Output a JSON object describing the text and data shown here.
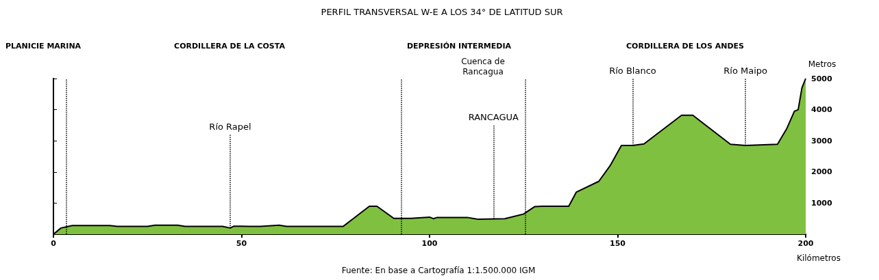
{
  "chart_data": {
    "type": "area",
    "title": "PERFIL TRANSVERSAL W-E A LOS 34° DE LATITUD SUR",
    "xlabel": "Kilómetros",
    "ylabel": "Metros",
    "x": [
      0,
      2,
      5,
      15,
      17,
      25,
      27,
      33,
      35,
      45,
      47,
      48,
      50,
      52,
      55,
      60,
      62,
      77,
      84,
      86,
      90.5,
      95,
      100,
      101,
      102,
      110,
      112,
      113,
      120,
      125,
      128,
      130,
      137,
      139,
      145,
      148,
      151,
      154,
      157,
      167,
      170,
      180,
      184,
      192.5,
      195,
      197,
      198,
      199,
      200
    ],
    "series": [
      {
        "color": "#80c040",
        "values": [
          0,
          200,
          280,
          280,
          250,
          250,
          290,
          290,
          250,
          250,
          200,
          260,
          260,
          250,
          250,
          290,
          250,
          250,
          900,
          900,
          510,
          510,
          550,
          500,
          540,
          540,
          500,
          480,
          500,
          650,
          890,
          900,
          900,
          1350,
          1700,
          2200,
          2850,
          2850,
          2900,
          3820,
          3820,
          2890,
          2850,
          2890,
          3400,
          3950,
          4000,
          4700,
          5000
        ]
      }
    ],
    "xlim": [
      0,
      200
    ],
    "xticks": [
      0,
      50,
      100,
      150,
      200
    ],
    "ylim": [
      0,
      5000
    ],
    "yticks": [
      1000,
      2000,
      3000,
      4000,
      5000
    ],
    "grid": false,
    "marker": "none",
    "line_style": "solid",
    "ref_lines": [
      {
        "axis": "x",
        "value": 3.5,
        "label": null,
        "color": "#000000",
        "line_style": "dotted"
      },
      {
        "axis": "x",
        "value": 92.5,
        "label": null,
        "color": "#000000",
        "line_style": "dotted"
      },
      {
        "axis": "x",
        "value": 125.5,
        "label": null,
        "color": "#000000",
        "line_style": "dotted"
      }
    ],
    "annotations": [
      "PLANICIE MARINA",
      "CORDILLERA DE LA COSTA",
      "DEPRESIÓN INTERMEDIA",
      "CORDILLERA DE LOS ANDES",
      "Cuenca de\nRancagua",
      {
        "text": "Río Rapel",
        "x": 47,
        "y": 200
      },
      {
        "text": "RANCAGUA",
        "x": 117,
        "y": 500
      },
      {
        "text": "Río Blanco",
        "x": 154,
        "y": 2850
      },
      {
        "text": "Río Maipo",
        "x": 184,
        "y": 2850
      },
      "Fuente: En base a Cartografía 1:1.500.000 IGM"
    ]
  }
}
